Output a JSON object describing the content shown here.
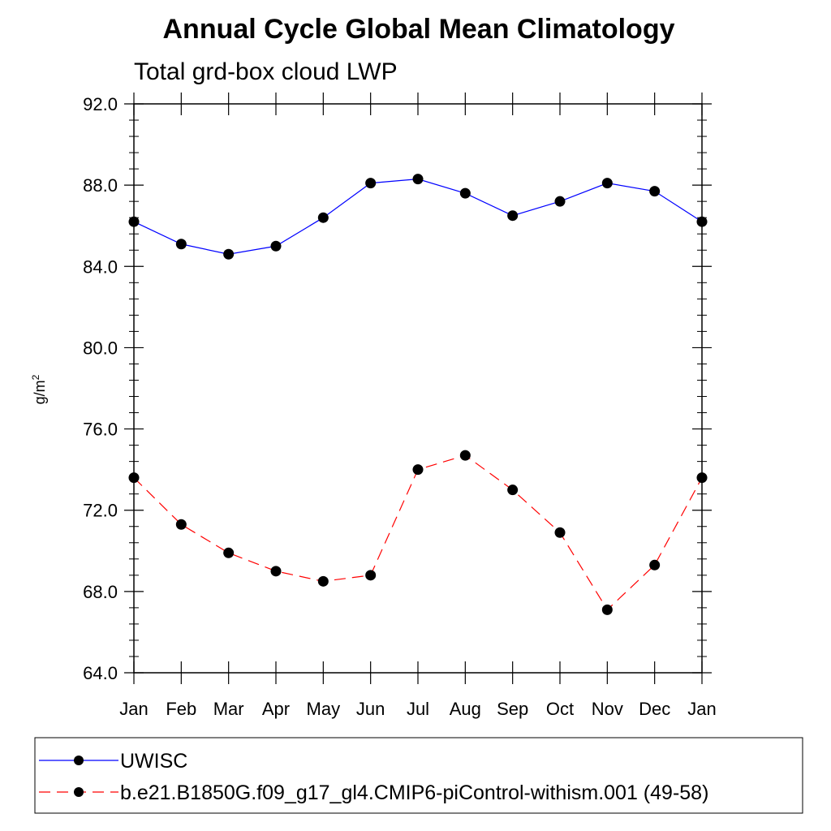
{
  "chart_data": {
    "type": "line",
    "title": "Annual Cycle Global Mean Climatology",
    "subtitle": "Total grd-box cloud LWP",
    "xlabel": "",
    "ylabel": "g/m",
    "ylabel_superscript": "2",
    "categories": [
      "Jan",
      "Feb",
      "Mar",
      "Apr",
      "May",
      "Jun",
      "Jul",
      "Aug",
      "Sep",
      "Oct",
      "Nov",
      "Dec",
      "Jan"
    ],
    "ylim": [
      64.0,
      92.0
    ],
    "yticks": [
      "64.0",
      "68.0",
      "72.0",
      "76.0",
      "80.0",
      "84.0",
      "88.0",
      "92.0"
    ],
    "grid": false,
    "legend_position": "bottom",
    "series": [
      {
        "name": "UWISC",
        "color": "#0000ff",
        "line_style": "solid",
        "marker": "filled-circle",
        "values": [
          86.2,
          85.1,
          84.6,
          85.0,
          86.4,
          88.1,
          88.3,
          87.6,
          86.5,
          87.2,
          88.1,
          87.7,
          86.2
        ]
      },
      {
        "name": "b.e21.B1850G.f09_g17_gl4.CMIP6-piControl-withism.001 (49-58)",
        "color": "#ff0000",
        "line_style": "dashed",
        "marker": "filled-circle",
        "values": [
          73.6,
          71.3,
          69.9,
          69.0,
          68.5,
          68.8,
          74.0,
          74.7,
          73.0,
          70.9,
          67.1,
          69.3,
          73.6
        ]
      }
    ]
  }
}
